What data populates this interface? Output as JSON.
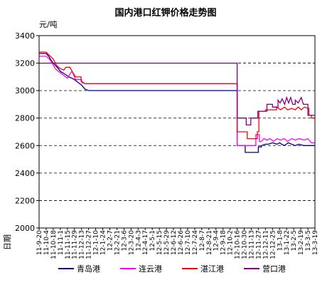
{
  "chart_data": {
    "type": "line",
    "title": "国内港口红钾价格走势图",
    "unit_label": "元/吨",
    "xlabel": "日期",
    "ylim": [
      2000,
      3400
    ],
    "yticks": [
      2000,
      2200,
      2400,
      2600,
      2800,
      3000,
      3200,
      3400
    ],
    "grid": {
      "horizontal": "dashed",
      "vertical": false
    },
    "legend_position": "bottom",
    "x_start": "2011-09-20",
    "x_end": "2013-03-19",
    "x_tick_labels": [
      "11-9-20",
      "11-10-4",
      "11-10-18",
      "11-11-1",
      "11-11-15",
      "11-11-29",
      "11-12-13",
      "11-12-27",
      "12-1-10",
      "12-1-24",
      "12-2-7",
      "12-2-21",
      "12-3-6",
      "12-3-20",
      "12-4-3",
      "12-4-17",
      "12-5-1",
      "12-5-15",
      "12-5-29",
      "12-6-12",
      "12-6-26",
      "12-7-10",
      "12-7-24",
      "12-8-7",
      "12-8-21",
      "12-9-4",
      "12-9-18",
      "12-10-2",
      "12-10-16",
      "12-10-30",
      "12-11-13",
      "12-11-27",
      "12-12-11",
      "12-12-25",
      "13-1-8",
      "13-1-22",
      "13-2-5",
      "13-2-19",
      "13-3-5",
      "13-3-19"
    ],
    "series": [
      {
        "name": "青岛港",
        "color": "#000080",
        "points": [
          [
            "2011-09-20",
            3270
          ],
          [
            "2011-10-04",
            3270
          ],
          [
            "2011-10-09",
            3250
          ],
          [
            "2011-10-14",
            3220
          ],
          [
            "2011-10-18",
            3200
          ],
          [
            "2011-10-23",
            3180
          ],
          [
            "2011-10-28",
            3160
          ],
          [
            "2011-11-01",
            3140
          ],
          [
            "2011-11-10",
            3120
          ],
          [
            "2011-11-18",
            3100
          ],
          [
            "2011-11-24",
            3090
          ],
          [
            "2011-11-29",
            3080
          ],
          [
            "2011-12-06",
            3060
          ],
          [
            "2011-12-13",
            3040
          ],
          [
            "2011-12-20",
            3010
          ],
          [
            "2011-12-27",
            3000
          ],
          [
            "2012-10-16",
            3000
          ],
          [
            "2012-10-16",
            2600
          ],
          [
            "2012-11-01",
            2600
          ],
          [
            "2012-11-01",
            2550
          ],
          [
            "2012-11-27",
            2550
          ],
          [
            "2012-11-27",
            2590
          ],
          [
            "2012-12-03",
            2590
          ],
          [
            "2012-12-03",
            2600
          ],
          [
            "2012-12-11",
            2610
          ],
          [
            "2012-12-17",
            2610
          ],
          [
            "2012-12-25",
            2620
          ],
          [
            "2013-01-03",
            2610
          ],
          [
            "2013-01-08",
            2620
          ],
          [
            "2013-01-12",
            2610
          ],
          [
            "2013-01-18",
            2600
          ],
          [
            "2013-01-25",
            2620
          ],
          [
            "2013-02-01",
            2610
          ],
          [
            "2013-02-08",
            2600
          ],
          [
            "2013-02-15",
            2610
          ],
          [
            "2013-02-25",
            2600
          ],
          [
            "2013-03-19",
            2600
          ]
        ]
      },
      {
        "name": "连云港",
        "color": "#FF00FF",
        "points": [
          [
            "2011-09-20",
            3250
          ],
          [
            "2011-10-04",
            3250
          ],
          [
            "2011-10-10",
            3230
          ],
          [
            "2011-10-16",
            3200
          ],
          [
            "2011-10-22",
            3160
          ],
          [
            "2011-10-28",
            3140
          ],
          [
            "2011-11-01",
            3130
          ],
          [
            "2011-11-08",
            3110
          ],
          [
            "2011-11-15",
            3090
          ],
          [
            "2011-11-20",
            3120
          ],
          [
            "2011-11-24",
            3140
          ],
          [
            "2011-11-28",
            3110
          ],
          [
            "2011-12-01",
            3080
          ],
          [
            "2011-12-13",
            3080
          ],
          [
            "2011-12-13",
            3060
          ],
          [
            "2011-12-20",
            3050
          ],
          [
            "2012-10-16",
            3050
          ],
          [
            "2012-10-16",
            2600
          ],
          [
            "2012-11-22",
            2600
          ],
          [
            "2012-11-22",
            2680
          ],
          [
            "2012-11-29",
            2680
          ],
          [
            "2012-11-29",
            2630
          ],
          [
            "2012-12-03",
            2630
          ],
          [
            "2012-12-08",
            2650
          ],
          [
            "2012-12-14",
            2640
          ],
          [
            "2012-12-20",
            2650
          ],
          [
            "2012-12-27",
            2630
          ],
          [
            "2013-01-03",
            2650
          ],
          [
            "2013-01-10",
            2640
          ],
          [
            "2013-01-17",
            2650
          ],
          [
            "2013-01-24",
            2630
          ],
          [
            "2013-02-01",
            2650
          ],
          [
            "2013-02-08",
            2640
          ],
          [
            "2013-02-16",
            2650
          ],
          [
            "2013-02-26",
            2640
          ],
          [
            "2013-03-05",
            2650
          ],
          [
            "2013-03-12",
            2620
          ],
          [
            "2013-03-19",
            2620
          ]
        ]
      },
      {
        "name": "湛江港",
        "color": "#FF0000",
        "points": [
          [
            "2011-09-20",
            3280
          ],
          [
            "2011-10-04",
            3280
          ],
          [
            "2011-10-18",
            3230
          ],
          [
            "2011-10-25",
            3180
          ],
          [
            "2011-11-01",
            3160
          ],
          [
            "2011-11-08",
            3150
          ],
          [
            "2011-11-12",
            3170
          ],
          [
            "2011-11-20",
            3170
          ],
          [
            "2011-11-26",
            3130
          ],
          [
            "2011-12-01",
            3100
          ],
          [
            "2011-12-12",
            3100
          ],
          [
            "2011-12-12",
            3070
          ],
          [
            "2011-12-20",
            3050
          ],
          [
            "2012-10-16",
            3050
          ],
          [
            "2012-10-16",
            2700
          ],
          [
            "2012-11-05",
            2700
          ],
          [
            "2012-11-05",
            2650
          ],
          [
            "2012-11-25",
            2650
          ],
          [
            "2012-11-25",
            2700
          ],
          [
            "2012-11-28",
            2700
          ],
          [
            "2012-11-28",
            2850
          ],
          [
            "2012-12-11",
            2850
          ],
          [
            "2012-12-11",
            2860
          ],
          [
            "2013-01-02",
            2860
          ],
          [
            "2013-01-02",
            2880
          ],
          [
            "2013-01-10",
            2860
          ],
          [
            "2013-01-18",
            2880
          ],
          [
            "2013-01-24",
            2860
          ],
          [
            "2013-02-01",
            2870
          ],
          [
            "2013-02-08",
            2860
          ],
          [
            "2013-02-14",
            2880
          ],
          [
            "2013-02-20",
            2860
          ],
          [
            "2013-02-26",
            2880
          ],
          [
            "2013-03-07",
            2870
          ],
          [
            "2013-03-07",
            2820
          ],
          [
            "2013-03-12",
            2820
          ],
          [
            "2013-03-12",
            2800
          ],
          [
            "2013-03-19",
            2800
          ]
        ]
      },
      {
        "name": "营口港",
        "color": "#800080",
        "points": [
          [
            "2011-09-20",
            3200
          ],
          [
            "2012-10-16",
            3200
          ],
          [
            "2012-10-16",
            2800
          ],
          [
            "2012-11-03",
            2800
          ],
          [
            "2012-11-03",
            2750
          ],
          [
            "2012-11-12",
            2750
          ],
          [
            "2012-11-12",
            2800
          ],
          [
            "2012-11-26",
            2800
          ],
          [
            "2012-11-26",
            2850
          ],
          [
            "2012-12-14",
            2850
          ],
          [
            "2012-12-14",
            2900
          ],
          [
            "2012-12-25",
            2900
          ],
          [
            "2012-12-25",
            2880
          ],
          [
            "2013-01-05",
            2880
          ],
          [
            "2013-01-05",
            2930
          ],
          [
            "2013-01-09",
            2910
          ],
          [
            "2013-01-13",
            2940
          ],
          [
            "2013-01-18",
            2900
          ],
          [
            "2013-01-22",
            2950
          ],
          [
            "2013-01-26",
            2910
          ],
          [
            "2013-01-30",
            2950
          ],
          [
            "2013-02-03",
            2900
          ],
          [
            "2013-02-08",
            2900
          ],
          [
            "2013-02-08",
            2930
          ],
          [
            "2013-02-14",
            2910
          ],
          [
            "2013-02-20",
            2950
          ],
          [
            "2013-02-24",
            2900
          ],
          [
            "2013-03-05",
            2900
          ],
          [
            "2013-03-05",
            2820
          ],
          [
            "2013-03-19",
            2820
          ]
        ]
      }
    ]
  }
}
